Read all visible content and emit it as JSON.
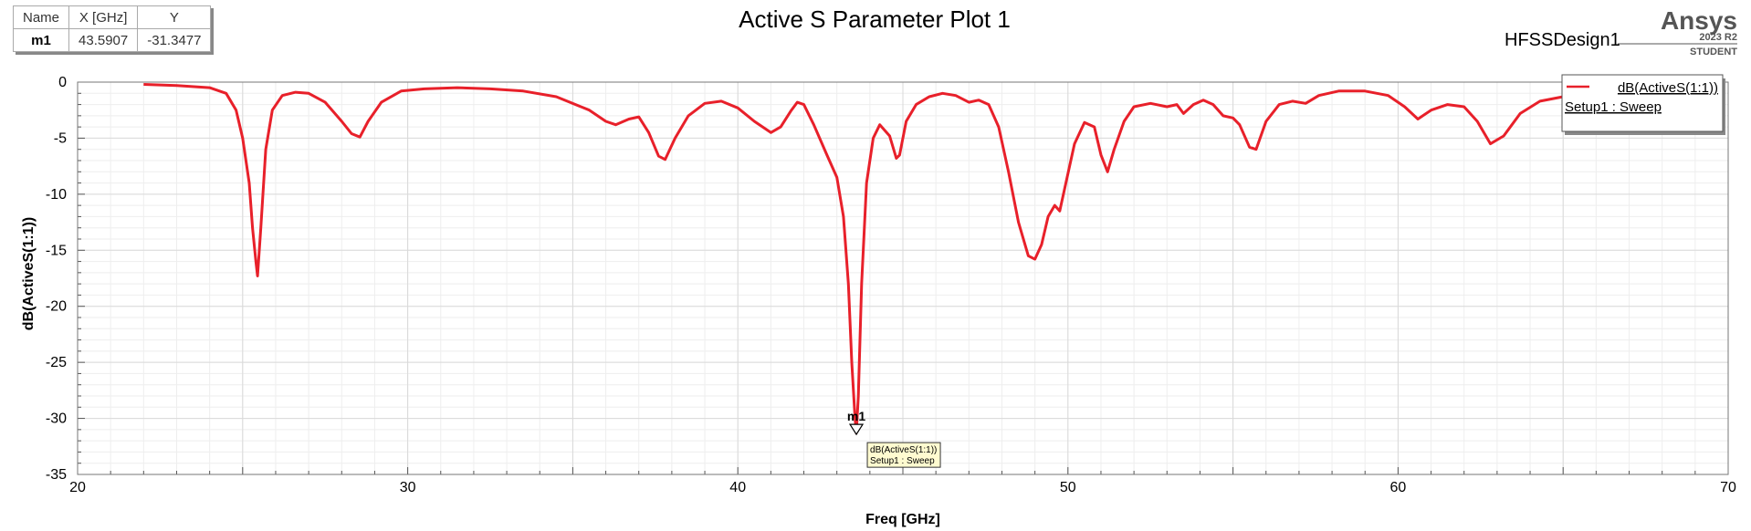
{
  "marker_table": {
    "headers": [
      "Name",
      "X [GHz]",
      "Y"
    ],
    "row": [
      "m1",
      "43.5907",
      "-31.3477"
    ]
  },
  "header": {
    "design_name": "HFSSDesign1",
    "brand": "Ansys",
    "version": "2023 R2",
    "edition": "STUDENT"
  },
  "legend": {
    "trace": "dB(ActiveS(1:1))",
    "setup": "Setup1 : Sweep"
  },
  "marker": {
    "name": "m1",
    "tag_line1": "dB(ActiveS(1:1))",
    "tag_line2": "Setup1 : Sweep"
  },
  "colors": {
    "trace": "#e8202a",
    "grid": "#d9d9d9",
    "background": "#ffffff"
  },
  "chart_data": {
    "type": "line",
    "title": "Active S Parameter Plot 1",
    "xlabel": "Freq [GHz]",
    "ylabel": "dB(ActiveS(1:1))",
    "xlim": [
      20,
      70
    ],
    "ylim": [
      -35,
      0
    ],
    "xticks": [
      20,
      30,
      40,
      50,
      60,
      70
    ],
    "yticks": [
      0,
      -5,
      -10,
      -15,
      -20,
      -25,
      -30,
      -35
    ],
    "grid": true,
    "legend_position": "top-right",
    "series": [
      {
        "name": "dB(ActiveS(1:1))",
        "x": [
          22.0,
          23.0,
          24.0,
          24.5,
          24.8,
          25.0,
          25.2,
          25.3,
          25.4,
          25.45,
          25.55,
          25.7,
          25.9,
          26.2,
          26.6,
          27.0,
          27.5,
          28.0,
          28.3,
          28.55,
          28.8,
          29.2,
          29.8,
          30.5,
          31.5,
          32.5,
          33.5,
          34.5,
          35.5,
          36.0,
          36.3,
          36.7,
          37.0,
          37.3,
          37.6,
          37.8,
          38.1,
          38.5,
          39.0,
          39.5,
          40.0,
          40.5,
          41.0,
          41.3,
          41.6,
          41.8,
          42.0,
          42.3,
          42.7,
          43.0,
          43.2,
          43.35,
          43.45,
          43.55,
          43.59,
          43.65,
          43.75,
          43.9,
          44.1,
          44.3,
          44.6,
          44.8,
          44.9,
          45.1,
          45.4,
          45.8,
          46.2,
          46.6,
          47.0,
          47.3,
          47.6,
          47.9,
          48.2,
          48.5,
          48.8,
          49.0,
          49.2,
          49.4,
          49.6,
          49.75,
          49.9,
          50.2,
          50.5,
          50.8,
          51.0,
          51.2,
          51.4,
          51.7,
          52.0,
          52.5,
          53.0,
          53.3,
          53.5,
          53.8,
          54.1,
          54.4,
          54.7,
          55.0,
          55.2,
          55.5,
          55.7,
          56.0,
          56.4,
          56.8,
          57.2,
          57.6,
          58.2,
          59.0,
          59.7,
          60.2,
          60.6,
          61.0,
          61.5,
          62.0,
          62.4,
          62.8,
          63.2,
          63.7,
          64.3,
          65.0,
          65.5
        ],
        "y": [
          -0.2,
          -0.3,
          -0.5,
          -1.0,
          -2.5,
          -5.0,
          -9.0,
          -13.0,
          -16.0,
          -17.3,
          -13.0,
          -6.0,
          -2.5,
          -1.2,
          -0.9,
          -1.0,
          -1.8,
          -3.5,
          -4.6,
          -4.9,
          -3.5,
          -1.8,
          -0.8,
          -0.6,
          -0.5,
          -0.6,
          -0.8,
          -1.3,
          -2.5,
          -3.5,
          -3.8,
          -3.3,
          -3.1,
          -4.5,
          -6.6,
          -6.9,
          -5.0,
          -3.0,
          -1.9,
          -1.7,
          -2.3,
          -3.5,
          -4.5,
          -4.0,
          -2.6,
          -1.8,
          -2.0,
          -3.8,
          -6.5,
          -8.5,
          -12.0,
          -18.0,
          -25.0,
          -30.0,
          -31.3,
          -28.0,
          -18.0,
          -9.0,
          -5.0,
          -3.8,
          -4.8,
          -6.8,
          -6.5,
          -3.5,
          -2.0,
          -1.3,
          -1.0,
          -1.2,
          -1.8,
          -1.6,
          -2.0,
          -4.0,
          -8.0,
          -12.5,
          -15.5,
          -15.8,
          -14.5,
          -12.0,
          -11.0,
          -11.5,
          -9.5,
          -5.5,
          -3.6,
          -4.0,
          -6.5,
          -8.0,
          -6.0,
          -3.5,
          -2.2,
          -1.9,
          -2.2,
          -2.0,
          -2.8,
          -2.0,
          -1.6,
          -2.0,
          -3.0,
          -3.2,
          -3.8,
          -5.8,
          -6.0,
          -3.5,
          -2.0,
          -1.7,
          -1.9,
          -1.2,
          -0.8,
          -0.8,
          -1.2,
          -2.2,
          -3.3,
          -2.5,
          -2.0,
          -2.2,
          -3.5,
          -5.5,
          -4.8,
          -2.8,
          -1.7,
          -1.3,
          -1.2
        ]
      }
    ],
    "annotations": [
      {
        "label": "m1",
        "x": 43.5907,
        "y": -31.3477
      }
    ]
  }
}
